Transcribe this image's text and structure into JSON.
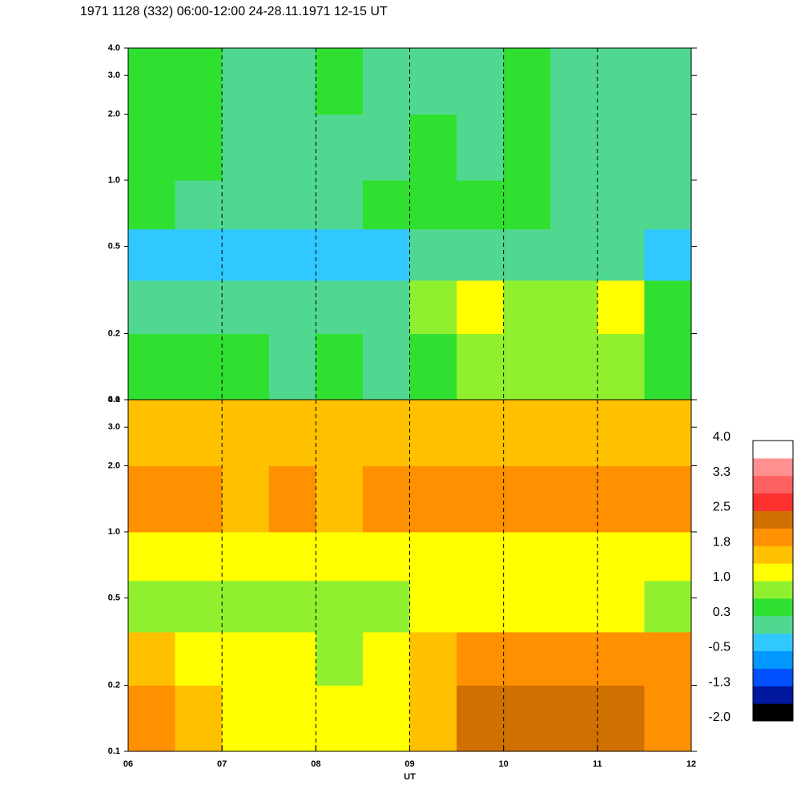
{
  "title": "1971 1128 (332) 06:00-12:00 24-28.11.1971  12-15 UT",
  "chart_data": [
    {
      "type": "heatmap",
      "x_edges": [
        6,
        6.5,
        7,
        7.5,
        8,
        8.5,
        9,
        9.5,
        10,
        10.5,
        11,
        11.5,
        12
      ],
      "y_edges": [
        0.1,
        0.2,
        0.35,
        0.6,
        1.0,
        2.0,
        4.0
      ],
      "z": [
        [
          0.4,
          0.3,
          0.3,
          0.2,
          0.3,
          0.2,
          0.6,
          0.8,
          0.8,
          0.7,
          0.8,
          0.5
        ],
        [
          0.2,
          0.1,
          0,
          -0.1,
          0,
          0.1,
          0.8,
          1.0,
          0.9,
          0.8,
          1.0,
          0.6
        ],
        [
          -0.4,
          -0.3,
          -0.3,
          -0.5,
          -0.4,
          -0.3,
          0,
          0.1,
          0,
          0,
          -0.1,
          -0.3
        ],
        [
          0.3,
          0.2,
          0,
          0.1,
          0.2,
          0.3,
          0.3,
          0.4,
          0.3,
          0.2,
          0,
          0.1
        ],
        [
          0.4,
          0.3,
          0,
          0,
          0.2,
          0.1,
          0.3,
          0.2,
          0.3,
          0.1,
          0,
          0.2
        ],
        [
          0.4,
          0.3,
          0.1,
          0.2,
          0.3,
          0.2,
          0.2,
          0.2,
          0.3,
          0.1,
          0.1,
          0.2
        ]
      ],
      "xlim": [
        6,
        12
      ],
      "xticks": [
        7,
        8,
        9,
        10,
        11
      ],
      "ylim": [
        0.1,
        4.0
      ],
      "log_y": true,
      "yticks": [
        0.1,
        0.2,
        0.5,
        {
          "value": 1,
          "label": "1.0"
        },
        {
          "value": 2,
          "label": "2.0"
        },
        {
          "value": 3,
          "label": "3.0"
        },
        {
          "value": 4,
          "label": "4.0"
        }
      ]
    },
    {
      "type": "heatmap",
      "x_edges": [
        6,
        6.5,
        7,
        7.5,
        8,
        8.5,
        9,
        9.5,
        10,
        10.5,
        11,
        11.5,
        12
      ],
      "y_edges": [
        0.1,
        0.2,
        0.35,
        0.6,
        1.0,
        2.0,
        4.0
      ],
      "z": [
        [
          1.9,
          1.7,
          1.2,
          1.3,
          1.1,
          1.2,
          1.6,
          2.2,
          2.3,
          2.2,
          2.3,
          1.9
        ],
        [
          1.5,
          1.2,
          1.0,
          1.0,
          0.9,
          1.0,
          1.4,
          2.0,
          2.1,
          2.0,
          2.0,
          1.8
        ],
        [
          0.9,
          0.7,
          0.8,
          0.7,
          0.8,
          0.8,
          1.0,
          1.2,
          1.2,
          1.1,
          1.0,
          0.9
        ],
        [
          1.1,
          1.0,
          1.1,
          1.0,
          1.1,
          1.1,
          1.2,
          1.2,
          1.1,
          1.1,
          1.2,
          1.1
        ],
        [
          1.8,
          1.8,
          1.7,
          1.8,
          1.7,
          1.8,
          1.8,
          1.9,
          1.8,
          1.8,
          1.9,
          1.8
        ],
        [
          1.6,
          1.7,
          1.6,
          1.7,
          1.6,
          1.7,
          1.7,
          1.6,
          1.7,
          1.6,
          1.7,
          1.6
        ]
      ],
      "xlim": [
        6,
        12
      ],
      "xticks": [
        {
          "value": 6,
          "label": "06"
        },
        {
          "value": 7,
          "label": "07"
        },
        {
          "value": 8,
          "label": "08"
        },
        {
          "value": 9,
          "label": "09"
        },
        {
          "value": 10,
          "label": "10"
        },
        {
          "value": 11,
          "label": "11"
        },
        {
          "value": 12,
          "label": "12"
        }
      ],
      "xlabel": "UT",
      "ylim": [
        0.1,
        4.0
      ],
      "log_y": true,
      "yticks": [
        0.1,
        0.2,
        0.5,
        {
          "value": 1,
          "label": "1.0"
        },
        {
          "value": 2,
          "label": "2.0"
        },
        {
          "value": 3,
          "label": "3.0"
        },
        {
          "value": 4,
          "label": "4.0"
        }
      ]
    }
  ],
  "colorbar": {
    "clim": [
      -2,
      4
    ],
    "colors": [
      "#000000",
      "#0018a0",
      "#0050ff",
      "#0098ff",
      "#30c8ff",
      "#50d890",
      "#30e030",
      "#90f030",
      "#ffff00",
      "#ffc000",
      "#ff9000",
      "#d07000",
      "#ff3030",
      "#ff6060",
      "#ff9090",
      "#ffffff"
    ],
    "ticks": [
      {
        "value": 4,
        "label": "4.0"
      },
      {
        "value": 3.25,
        "label": "3.3"
      },
      2.5,
      {
        "value": 1.75,
        "label": "1.8"
      },
      {
        "value": 1,
        "label": "1.0"
      },
      {
        "value": 0.25,
        "label": "0.3"
      },
      -0.5,
      {
        "value": -1.25,
        "label": "-1.3"
      },
      {
        "value": -2,
        "label": "-2.0"
      }
    ]
  }
}
